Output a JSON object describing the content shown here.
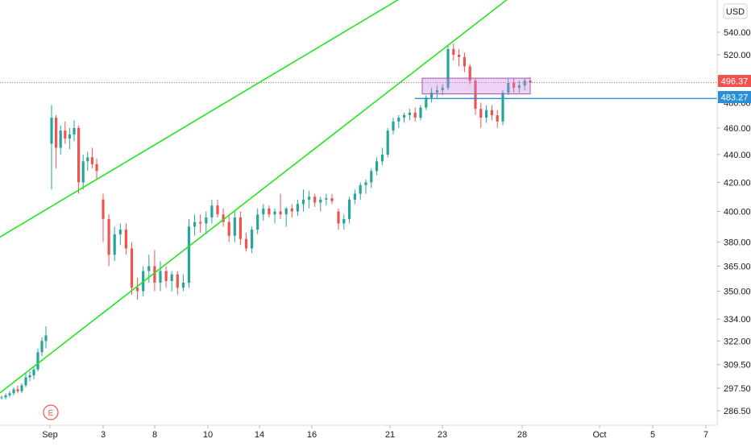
{
  "currency": "USD",
  "colors": {
    "up": "#26a69a",
    "down": "#ef5350",
    "channel": "#22e51e",
    "level": "#2a8fd8",
    "box": "#c87de0",
    "last_price_label": "#ef5350"
  },
  "axis": {
    "y_ticks": [
      "540.00",
      "520.00",
      "500.00",
      "480.00",
      "460.00",
      "440.00",
      "420.00",
      "400.00",
      "380.00",
      "365.00",
      "350.00",
      "334.00",
      "322.00",
      "309.50",
      "297.50",
      "286.50"
    ],
    "x_ticks": [
      "Sep",
      "3",
      "8",
      "10",
      "14",
      "16",
      "21",
      "23",
      "28",
      "Oct",
      "5",
      "7"
    ]
  },
  "price_labels": {
    "last": "496.37",
    "level": "483.27"
  },
  "event_marker": "E",
  "chart_data": {
    "type": "candlestick",
    "x_axis": "date",
    "y_axis_scale": "log",
    "y_ticks": [
      540,
      520,
      500,
      480,
      460,
      440,
      420,
      400,
      380,
      365,
      350,
      334,
      322,
      309.5,
      297.5,
      286.5
    ],
    "x_tick_labels": [
      "Sep",
      "3",
      "8",
      "10",
      "14",
      "16",
      "21",
      "23",
      "28",
      "Oct",
      "5",
      "7"
    ],
    "last_price": 496.37,
    "horizontal_level": 483.27,
    "channel": {
      "upper": {
        "from": [
          "Aug 27",
          382
        ],
        "to": [
          "Sep 30",
          548
        ]
      },
      "lower": {
        "from": [
          "Aug 27",
          294
        ],
        "to": [
          "Oct 7",
          518
        ]
      }
    },
    "zone": {
      "from": "Sep 22",
      "to": "Sep 29",
      "low": 487,
      "high": 500
    },
    "series": [
      {
        "values": [
          [
            293,
            294,
            292,
            293
          ],
          [
            293,
            295,
            292,
            294
          ],
          [
            294,
            296,
            293,
            295
          ],
          [
            295,
            298,
            294,
            297
          ],
          [
            297,
            299,
            295,
            296
          ],
          [
            296,
            300,
            295,
            299
          ],
          [
            299,
            305,
            298,
            303
          ],
          [
            303,
            306,
            301,
            304
          ],
          [
            304,
            308,
            302,
            307
          ],
          [
            307,
            318,
            306,
            316
          ],
          [
            316,
            324,
            314,
            322
          ],
          [
            322,
            330,
            318,
            325
          ],
          [
            448,
            478,
            415,
            468
          ],
          [
            468,
            470,
            430,
            445
          ],
          [
            445,
            462,
            440,
            458
          ],
          [
            458,
            465,
            448,
            452
          ],
          [
            452,
            460,
            444,
            455
          ],
          [
            455,
            466,
            450,
            460
          ],
          [
            460,
            462,
            412,
            420
          ],
          [
            420,
            440,
            415,
            435
          ],
          [
            435,
            442,
            428,
            438
          ],
          [
            438,
            445,
            430,
            433
          ],
          [
            433,
            437,
            422,
            428
          ],
          [
            408,
            412,
            380,
            395
          ],
          [
            395,
            398,
            365,
            372
          ],
          [
            372,
            390,
            368,
            385
          ],
          [
            385,
            392,
            378,
            388
          ],
          [
            388,
            392,
            372,
            376
          ],
          [
            376,
            380,
            348,
            352
          ],
          [
            352,
            358,
            345,
            350
          ],
          [
            350,
            365,
            347,
            362
          ],
          [
            362,
            372,
            355,
            365
          ],
          [
            365,
            375,
            350,
            355
          ],
          [
            355,
            368,
            350,
            362
          ],
          [
            362,
            365,
            352,
            356
          ],
          [
            356,
            362,
            350,
            360
          ],
          [
            360,
            362,
            348,
            352
          ],
          [
            352,
            360,
            350,
            355
          ],
          [
            355,
            395,
            352,
            390
          ],
          [
            390,
            398,
            384,
            393
          ],
          [
            393,
            398,
            386,
            392
          ],
          [
            392,
            400,
            385,
            396
          ],
          [
            396,
            408,
            392,
            404
          ],
          [
            404,
            408,
            396,
            398
          ],
          [
            398,
            402,
            390,
            393
          ],
          [
            393,
            398,
            380,
            384
          ],
          [
            384,
            400,
            380,
            396
          ],
          [
            396,
            400,
            378,
            382
          ],
          [
            382,
            386,
            374,
            376
          ],
          [
            376,
            390,
            373,
            388
          ],
          [
            388,
            402,
            385,
            398
          ],
          [
            398,
            405,
            394,
            402
          ],
          [
            402,
            404,
            396,
            398
          ],
          [
            398,
            402,
            392,
            400
          ],
          [
            400,
            412,
            395,
            398
          ],
          [
            398,
            403,
            390,
            402
          ],
          [
            402,
            405,
            396,
            400
          ],
          [
            400,
            408,
            397,
            405
          ],
          [
            405,
            415,
            400,
            408
          ],
          [
            408,
            414,
            402,
            410
          ],
          [
            410,
            412,
            403,
            406
          ],
          [
            406,
            410,
            400,
            408
          ],
          [
            408,
            412,
            404,
            409
          ],
          [
            409,
            412,
            405,
            407
          ],
          [
            400,
            402,
            388,
            392
          ],
          [
            392,
            398,
            388,
            395
          ],
          [
            395,
            410,
            392,
            408
          ],
          [
            408,
            415,
            405,
            412
          ],
          [
            412,
            420,
            408,
            418
          ],
          [
            418,
            422,
            412,
            420
          ],
          [
            420,
            430,
            416,
            428
          ],
          [
            428,
            438,
            425,
            435
          ],
          [
            435,
            445,
            432,
            440
          ],
          [
            440,
            460,
            438,
            458
          ],
          [
            458,
            468,
            455,
            465
          ],
          [
            465,
            470,
            460,
            468
          ],
          [
            468,
            472,
            464,
            470
          ],
          [
            470,
            475,
            466,
            472
          ],
          [
            472,
            476,
            465,
            468
          ],
          [
            468,
            478,
            466,
            476
          ],
          [
            476,
            486,
            474,
            484
          ],
          [
            484,
            492,
            480,
            488
          ],
          [
            488,
            494,
            484,
            490
          ],
          [
            490,
            495,
            486,
            492
          ],
          [
            492,
            528,
            490,
            525
          ],
          [
            525,
            530,
            515,
            520
          ],
          [
            520,
            525,
            510,
            518
          ],
          [
            518,
            522,
            505,
            510
          ],
          [
            510,
            512,
            495,
            498
          ],
          [
            498,
            500,
            470,
            475
          ],
          [
            475,
            480,
            460,
            468
          ],
          [
            468,
            478,
            464,
            474
          ],
          [
            474,
            478,
            466,
            470
          ],
          [
            470,
            474,
            460,
            465
          ],
          [
            465,
            490,
            462,
            488
          ],
          [
            488,
            500,
            486,
            496
          ],
          [
            496,
            500,
            488,
            492
          ],
          [
            492,
            498,
            488,
            494
          ],
          [
            494,
            500,
            490,
            498
          ],
          [
            498,
            501,
            494,
            496.37
          ]
        ]
      }
    ]
  }
}
